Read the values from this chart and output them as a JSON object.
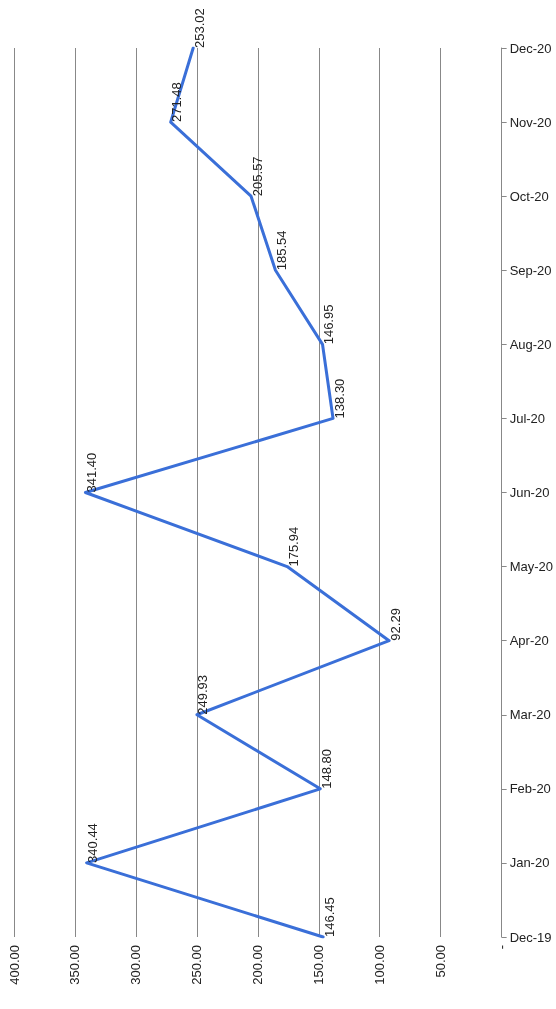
{
  "chart_data": {
    "type": "line",
    "categories": [
      "Dec-20",
      "Nov-20",
      "Oct-20",
      "Sep-20",
      "Aug-20",
      "Jul-20",
      "Jun-20",
      "May-20",
      "Apr-20",
      "Mar-20",
      "Feb-20",
      "Jan-20",
      "Dec-19"
    ],
    "series": [
      {
        "color": "#3a6fd8",
        "values": [
          253.02,
          271.48,
          205.57,
          185.54,
          146.95,
          138.3,
          341.4,
          175.94,
          92.29,
          249.93,
          148.8,
          340.44,
          146.45
        ],
        "value_labels": [
          "253.02",
          "271.48",
          "205.57",
          "185.54",
          "146.95",
          "138.30",
          "341.40",
          "175.94",
          "92.29",
          "249.93",
          "148.80",
          "340.44",
          "146.45"
        ]
      }
    ],
    "orientation": "horizontal",
    "xlim": [
      400,
      0
    ],
    "xticks": [
      {
        "value": 400,
        "label": "400.00"
      },
      {
        "value": 350,
        "label": "350.00"
      },
      {
        "value": 300,
        "label": "300.00"
      },
      {
        "value": 250,
        "label": "250.00"
      },
      {
        "value": 200,
        "label": "200.00"
      },
      {
        "value": 150,
        "label": "150.00"
      },
      {
        "value": 100,
        "label": "100.00"
      },
      {
        "value": 50,
        "label": "50.00"
      },
      {
        "value": 0,
        "label": "-"
      }
    ],
    "grid": "x",
    "legend": false,
    "marker": "none",
    "line_style": "solid"
  }
}
